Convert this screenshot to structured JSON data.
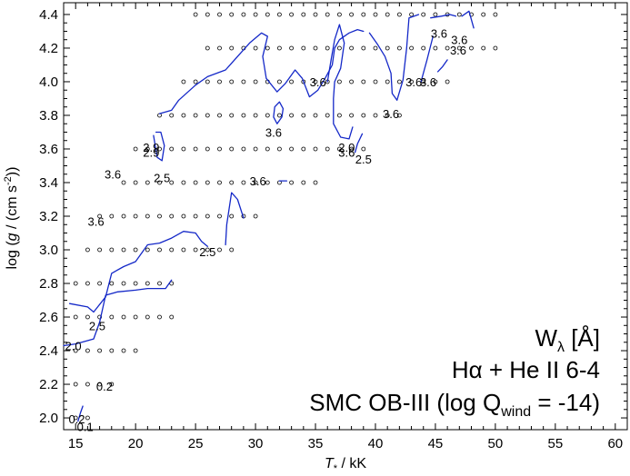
{
  "chart_data": {
    "type": "scatter",
    "xlabel_main": "T",
    "xlabel_sub": "*",
    "xlabel_unit": " / kK",
    "ylabel_pre": "log (",
    "ylabel_g": "g",
    "ylabel_unit": " / (cm s",
    "ylabel_sup": "-2",
    "ylabel_post": "))",
    "xlim": [
      14,
      61
    ],
    "ylim": [
      1.93,
      4.47
    ],
    "xticks": [
      15,
      20,
      25,
      30,
      35,
      40,
      45,
      50,
      55,
      60
    ],
    "yticks": [
      2.0,
      2.2,
      2.4,
      2.6,
      2.8,
      3.0,
      3.2,
      3.4,
      3.6,
      3.8,
      4.0,
      4.2,
      4.4
    ],
    "ytick_labels": [
      "2.0",
      "2.2",
      "2.4",
      "2.6",
      "2.8",
      "3.0",
      "3.2",
      "3.4",
      "3.6",
      "3.8",
      "4.0",
      "4.2",
      "4.4"
    ],
    "grid_rows": [
      {
        "logg": 2.0,
        "t_min": 15,
        "t_max": 16
      },
      {
        "logg": 2.2,
        "t_min": 15,
        "t_max": 18
      },
      {
        "logg": 2.4,
        "t_min": 15,
        "t_max": 20
      },
      {
        "logg": 2.6,
        "t_min": 15,
        "t_max": 23
      },
      {
        "logg": 2.8,
        "t_min": 15,
        "t_max": 23
      },
      {
        "logg": 3.0,
        "t_min": 16,
        "t_max": 28
      },
      {
        "logg": 3.2,
        "t_min": 17,
        "t_max": 30
      },
      {
        "logg": 3.4,
        "t_min": 19,
        "t_max": 35
      },
      {
        "logg": 3.6,
        "t_min": 20,
        "t_max": 39
      },
      {
        "logg": 3.8,
        "t_min": 22,
        "t_max": 42
      },
      {
        "logg": 4.0,
        "t_min": 24,
        "t_max": 46
      },
      {
        "logg": 4.2,
        "t_min": 26,
        "t_max": 50
      },
      {
        "logg": 4.4,
        "t_min": 25,
        "t_max": 50
      }
    ],
    "contours": [
      {
        "level": "0.2",
        "points": [
          [
            15.2,
            1.98
          ],
          [
            15.4,
            2.03
          ],
          [
            15.6,
            2.07
          ]
        ]
      },
      {
        "level": "2.0",
        "points": [
          [
            14.0,
            2.43
          ],
          [
            15.0,
            2.44
          ],
          [
            16.5,
            2.47
          ],
          [
            17.0,
            2.57
          ],
          [
            17.5,
            2.73
          ],
          [
            18.5,
            2.75
          ],
          [
            20.0,
            2.76
          ],
          [
            21.0,
            2.77
          ],
          [
            22.5,
            2.77
          ],
          [
            23.0,
            2.82
          ]
        ]
      },
      {
        "level": "2.5",
        "points": [
          [
            14.5,
            2.68
          ],
          [
            16.0,
            2.66
          ],
          [
            16.5,
            2.63
          ],
          [
            17.5,
            2.72
          ],
          [
            18.0,
            2.86
          ],
          [
            19.0,
            2.9
          ],
          [
            20.0,
            2.93
          ],
          [
            21.0,
            3.03
          ],
          [
            22.0,
            3.04
          ],
          [
            23.0,
            3.07
          ],
          [
            24.0,
            3.11
          ],
          [
            25.0,
            3.1
          ],
          [
            25.5,
            3.05
          ],
          [
            26.0,
            3.02
          ]
        ]
      },
      {
        "level": "2.5",
        "points": [
          [
            27.5,
            3.03
          ],
          [
            27.6,
            3.15
          ],
          [
            28.0,
            3.34
          ],
          [
            28.5,
            3.3
          ],
          [
            29.0,
            3.19
          ]
        ]
      },
      {
        "level": "2.9",
        "points": [
          [
            21.5,
            3.68
          ],
          [
            21.8,
            3.55
          ],
          [
            22.2,
            3.53
          ],
          [
            22.4,
            3.62
          ],
          [
            22.1,
            3.7
          ],
          [
            21.7,
            3.7
          ]
        ]
      },
      {
        "level": "3.6",
        "points": [
          [
            32.0,
            3.41
          ],
          [
            32.6,
            3.41
          ]
        ]
      },
      {
        "level": "3.6",
        "points": [
          [
            22.0,
            3.81
          ],
          [
            23.0,
            3.83
          ],
          [
            23.6,
            3.89
          ],
          [
            25.0,
            3.98
          ],
          [
            26.0,
            4.03
          ],
          [
            27.5,
            4.07
          ],
          [
            28.5,
            4.15
          ],
          [
            29.5,
            4.23
          ],
          [
            30.5,
            4.29
          ],
          [
            31.0,
            4.27
          ],
          [
            30.6,
            4.15
          ],
          [
            30.9,
            4.02
          ],
          [
            31.8,
            3.94
          ],
          [
            32.5,
            3.99
          ],
          [
            33.3,
            4.07
          ],
          [
            33.9,
            4.02
          ],
          [
            34.5,
            3.91
          ],
          [
            35.2,
            3.95
          ],
          [
            35.8,
            4.02
          ],
          [
            36.4,
            4.1
          ],
          [
            36.6,
            4.2
          ],
          [
            37.0,
            4.25
          ],
          [
            37.8,
            4.29
          ],
          [
            38.5,
            4.31
          ],
          [
            39.0,
            4.3
          ]
        ]
      },
      {
        "level": "3.6",
        "points": [
          [
            31.8,
            3.75
          ],
          [
            32.2,
            3.79
          ],
          [
            32.3,
            3.84
          ],
          [
            32.0,
            3.88
          ],
          [
            31.6,
            3.85
          ],
          [
            31.5,
            3.79
          ],
          [
            31.8,
            3.75
          ]
        ]
      },
      {
        "level": "3.6",
        "points": [
          [
            36.0,
            4.0
          ],
          [
            36.3,
            4.13
          ],
          [
            36.6,
            4.25
          ],
          [
            37.0,
            4.34
          ],
          [
            37.4,
            4.23
          ],
          [
            37.1,
            4.08
          ],
          [
            36.6,
            4.0
          ],
          [
            36.5,
            3.9
          ],
          [
            36.5,
            3.75
          ],
          [
            37.1,
            3.67
          ],
          [
            37.8,
            3.66
          ],
          [
            38.1,
            3.73
          ]
        ]
      },
      {
        "level": "2.0",
        "points": [
          [
            38.3,
            3.58
          ],
          [
            38.5,
            3.63
          ],
          [
            38.9,
            3.69
          ]
        ]
      },
      {
        "level": "3.6",
        "points": [
          [
            39.5,
            4.29
          ],
          [
            40.2,
            4.22
          ],
          [
            40.8,
            4.15
          ],
          [
            41.3,
            4.05
          ],
          [
            41.4,
            3.93
          ],
          [
            41.8,
            3.89
          ],
          [
            42.3,
            4.01
          ],
          [
            42.6,
            4.2
          ],
          [
            42.8,
            4.38
          ],
          [
            43.6,
            4.4
          ]
        ]
      },
      {
        "level": "3.6",
        "points": [
          [
            43.8,
            4.0
          ],
          [
            44.3,
            4.13
          ],
          [
            44.8,
            4.27
          ]
        ]
      },
      {
        "level": "3.6",
        "points": [
          [
            44.6,
            4.38
          ],
          [
            45.5,
            4.39
          ],
          [
            46.2,
            4.4
          ],
          [
            46.7,
            4.39
          ]
        ]
      },
      {
        "level": "3.6",
        "points": [
          [
            47.2,
            4.39
          ],
          [
            47.8,
            4.42
          ],
          [
            48.2,
            4.32
          ]
        ]
      },
      {
        "level": "3.6",
        "points": [
          [
            45.2,
            4.06
          ],
          [
            45.6,
            4.09
          ],
          [
            46.0,
            4.13
          ]
        ]
      }
    ],
    "contour_labels": [
      {
        "text": "0.2",
        "x": 15.1,
        "y": 1.995
      },
      {
        "text": "0.1",
        "x": 15.8,
        "y": 1.95
      },
      {
        "text": "0.2",
        "x": 17.4,
        "y": 2.19
      },
      {
        "text": "2.0",
        "x": 14.8,
        "y": 2.43
      },
      {
        "text": "2.5",
        "x": 16.8,
        "y": 2.55
      },
      {
        "text": "3.6",
        "x": 16.7,
        "y": 3.17
      },
      {
        "text": "3.6",
        "x": 18.1,
        "y": 3.45
      },
      {
        "text": "2.5",
        "x": 22.2,
        "y": 3.43
      },
      {
        "text": "2.9",
        "x": 21.3,
        "y": 3.61
      },
      {
        "text": "2.9",
        "x": 21.3,
        "y": 3.58
      },
      {
        "text": "2.5",
        "x": 26.0,
        "y": 2.99
      },
      {
        "text": "3.6",
        "x": 30.2,
        "y": 3.41
      },
      {
        "text": "3.6",
        "x": 31.5,
        "y": 3.7
      },
      {
        "text": "3.6",
        "x": 35.2,
        "y": 4.0
      },
      {
        "text": "2.0",
        "x": 37.6,
        "y": 3.61
      },
      {
        "text": "3.6",
        "x": 37.6,
        "y": 3.58
      },
      {
        "text": "2.5",
        "x": 39.0,
        "y": 3.54
      },
      {
        "text": "3.6",
        "x": 41.3,
        "y": 3.81
      },
      {
        "text": "3.6",
        "x": 43.2,
        "y": 4.0
      },
      {
        "text": "3.6",
        "x": 44.4,
        "y": 4.0
      },
      {
        "text": "3.6",
        "x": 45.3,
        "y": 4.29
      },
      {
        "text": "3.6",
        "x": 47.0,
        "y": 4.25
      },
      {
        "text": "3.6",
        "x": 46.9,
        "y": 4.19
      }
    ],
    "annotation": {
      "line1_main": "W",
      "line1_sub": "λ",
      "line1_rest": "  [Å]",
      "line2": "Hα + He II 6-4",
      "line3_main": "SMC OB-III (log Q",
      "line3_sub": "wind",
      "line3_rest": " = -14)"
    },
    "colors": {
      "contour": "#1428c8",
      "marker": "#000000",
      "axis": "#000000"
    },
    "grid": false,
    "legend": "none"
  }
}
